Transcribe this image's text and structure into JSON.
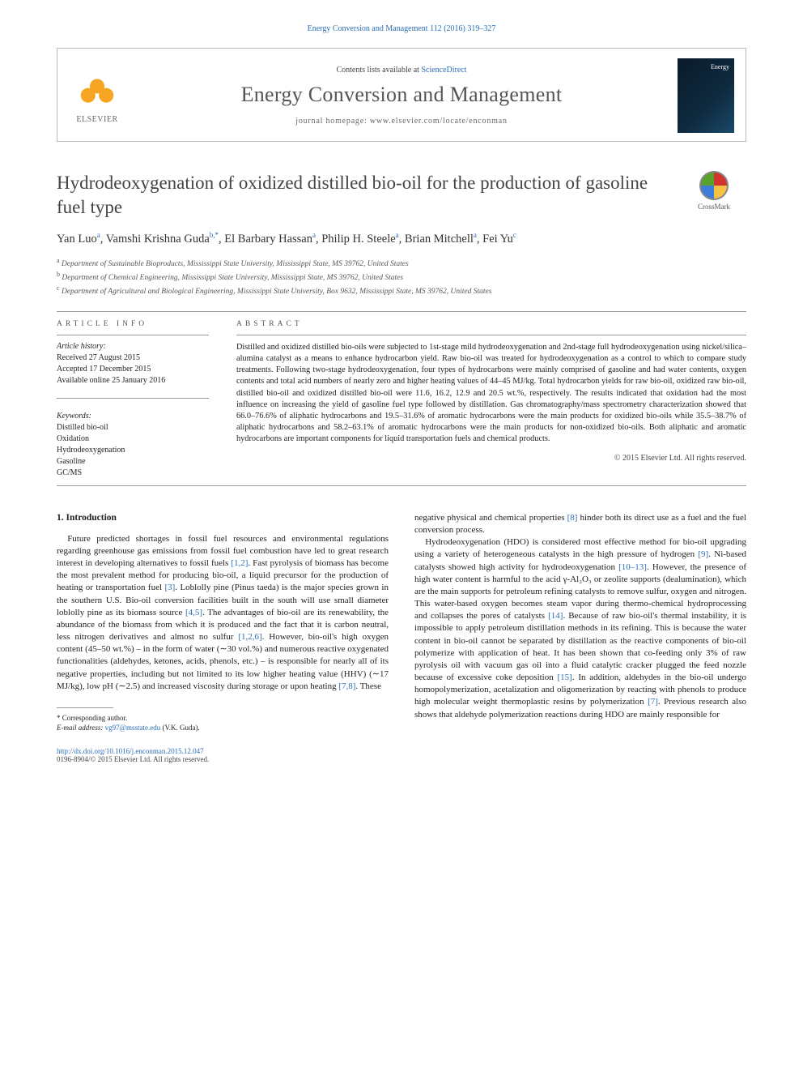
{
  "header": {
    "citation": "Energy Conversion and Management 112 (2016) 319–327",
    "contents_prefix": "Contents lists available at ",
    "contents_link": "ScienceDirect",
    "journal_name": "Energy Conversion and Management",
    "homepage_label": "journal homepage: www.elsevier.com/locate/enconman",
    "elsevier_label": "ELSEVIER"
  },
  "article": {
    "title": "Hydrodeoxygenation of oxidized distilled bio-oil for the production of gasoline fuel type",
    "crossmark_label": "CrossMark",
    "authors_html": "Yan Luo<sup>a</sup>, Vamshi Krishna Guda<sup>b,*</sup>, El Barbary Hassan<sup>a</sup>, Philip H. Steele<sup>a</sup>, Brian Mitchell<sup>a</sup>, Fei Yu<sup>c</sup>",
    "affiliations": [
      "a Department of Sustainable Bioproducts, Mississippi State University, Mississippi State, MS 39762, United States",
      "b Department of Chemical Engineering, Mississippi State University, Mississippi State, MS 39762, United States",
      "c Department of Agricultural and Biological Engineering, Mississippi State University, Box 9632, Mississippi State, MS 39762, United States"
    ]
  },
  "info": {
    "heading": "ARTICLE INFO",
    "history_label": "Article history:",
    "history": [
      "Received 27 August 2015",
      "Accepted 17 December 2015",
      "Available online 25 January 2016"
    ],
    "keywords_label": "Keywords:",
    "keywords": [
      "Distilled bio-oil",
      "Oxidation",
      "Hydrodeoxygenation",
      "Gasoline",
      "GC/MS"
    ]
  },
  "abstract": {
    "heading": "ABSTRACT",
    "text": "Distilled and oxidized distilled bio-oils were subjected to 1st-stage mild hydrodeoxygenation and 2nd-stage full hydrodeoxygenation using nickel/silica–alumina catalyst as a means to enhance hydrocarbon yield. Raw bio-oil was treated for hydrodeoxygenation as a control to which to compare study treatments. Following two-stage hydrodeoxygenation, four types of hydrocarbons were mainly comprised of gasoline and had water contents, oxygen contents and total acid numbers of nearly zero and higher heating values of 44–45 MJ/kg. Total hydrocarbon yields for raw bio-oil, oxidized raw bio-oil, distilled bio-oil and oxidized distilled bio-oil were 11.6, 16.2, 12.9 and 20.5 wt.%, respectively. The results indicated that oxidation had the most influence on increasing the yield of gasoline fuel type followed by distillation. Gas chromatography/mass spectrometry characterization showed that 66.0–76.6% of aliphatic hydrocarbons and 19.5–31.6% of aromatic hydrocarbons were the main products for oxidized bio-oils while 35.5–38.7% of aliphatic hydrocarbons and 58.2–63.1% of aromatic hydrocarbons were the main products for non-oxidized bio-oils. Both aliphatic and aromatic hydrocarbons are important components for liquid transportation fuels and chemical products.",
    "copyright": "© 2015 Elsevier Ltd. All rights reserved."
  },
  "body": {
    "intro_heading": "1. Introduction",
    "col1_p1": "Future predicted shortages in fossil fuel resources and environmental regulations regarding greenhouse gas emissions from fossil fuel combustion have led to great research interest in developing alternatives to fossil fuels [1,2]. Fast pyrolysis of biomass has become the most prevalent method for producing bio-oil, a liquid precursor for the production of heating or transportation fuel [3]. Loblolly pine (Pinus taeda) is the major species grown in the southern U.S. Bio-oil conversion facilities built in the south will use small diameter loblolly pine as its biomass source [4,5]. The advantages of bio-oil are its renewability, the abundance of the biomass from which it is produced and the fact that it is carbon neutral, less nitrogen derivatives and almost no sulfur [1,2,6]. However, bio-oil's high oxygen content (45–50 wt.%) – in the form of water (∼30 vol.%) and numerous reactive oxygenated functionalities (aldehydes, ketones, acids, phenols, etc.) – is responsible for nearly all of its negative properties, including but not limited to its low higher heating value (HHV) (∼17 MJ/kg), low pH (∼2.5) and increased viscosity during storage or upon heating [7,8]. These",
    "col2_p1": "negative physical and chemical properties [8] hinder both its direct use as a fuel and the fuel conversion process.",
    "col2_p2": "Hydrodeoxygenation (HDO) is considered most effective method for bio-oil upgrading using a variety of heterogeneous catalysts in the high pressure of hydrogen [9]. Ni-based catalysts showed high activity for hydrodeoxygenation [10–13]. However, the presence of high water content is harmful to the acid γ-Al₂O₃ or zeolite supports (dealumination), which are the main supports for petroleum refining catalysts to remove sulfur, oxygen and nitrogen. This water-based oxygen becomes steam vapor during thermo-chemical hydroprocessing and collapses the pores of catalysts [14]. Because of raw bio-oil's thermal instability, it is impossible to apply petroleum distillation methods in its refining. This is because the water content in bio-oil cannot be separated by distillation as the reactive components of bio-oil polymerize with application of heat. It has been shown that co-feeding only 3% of raw pyrolysis oil with vacuum gas oil into a fluid catalytic cracker plugged the feed nozzle because of excessive coke deposition [15]. In addition, aldehydes in the bio-oil undergo homopolymerization, acetalization and oligomerization by reacting with phenols to produce high molecular weight thermoplastic resins by polymerization [7]. Previous research also shows that aldehyde polymerization reactions during HDO are mainly responsible for"
  },
  "footnotes": {
    "corresponding": "* Corresponding author.",
    "email_label": "E-mail address: ",
    "email": "vg97@msstate.edu",
    "email_attribution": " (V.K. Guda)."
  },
  "footer": {
    "doi": "http://dx.doi.org/10.1016/j.enconman.2015.12.047",
    "issn_line": "0196-8904/© 2015 Elsevier Ltd. All rights reserved."
  },
  "colors": {
    "link": "#2a6db5",
    "text": "#222222",
    "muted": "#555555"
  }
}
